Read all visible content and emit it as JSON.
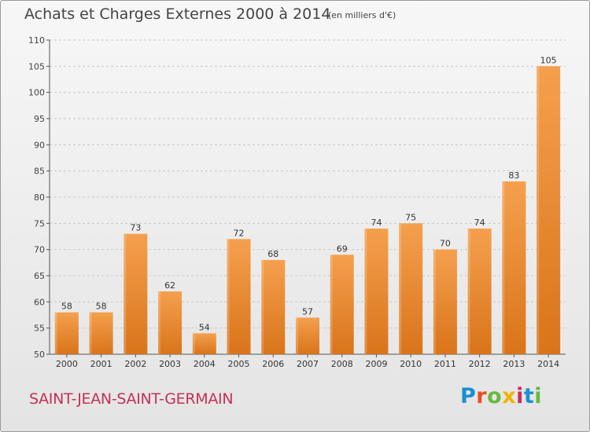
{
  "header": {
    "title": "Achats et Charges Externes 2000 à 2014",
    "subtitle": "(en milliers d'€)"
  },
  "footer": {
    "city": "SAINT-JEAN-SAINT-GERMAIN",
    "logo_text": "Proxiti",
    "logo_colors": [
      "#1a8fd1",
      "#e94e24",
      "#69b83e",
      "#f0b400",
      "#c4305a",
      "#1a8fd1",
      "#69b83e"
    ]
  },
  "chart_data": {
    "type": "bar",
    "categories": [
      "2000",
      "2001",
      "2002",
      "2003",
      "2004",
      "2005",
      "2006",
      "2007",
      "2008",
      "2009",
      "2010",
      "2011",
      "2012",
      "2013",
      "2014"
    ],
    "values": [
      58,
      58,
      73,
      62,
      54,
      72,
      68,
      57,
      69,
      74,
      75,
      70,
      74,
      83,
      105
    ],
    "data_labels": [
      "58",
      "58",
      "73",
      "62",
      "54",
      "72",
      "68",
      "57",
      "69",
      "74",
      "75",
      "70",
      "74",
      "83",
      "105"
    ],
    "yticks": [
      "50",
      "55",
      "60",
      "65",
      "70",
      "75",
      "80",
      "85",
      "90",
      "95",
      "100",
      "105",
      "110"
    ],
    "ylim": [
      50,
      110
    ],
    "grid": true,
    "bar_color_top": "#f5a04e",
    "bar_color_bottom": "#d9741a"
  }
}
